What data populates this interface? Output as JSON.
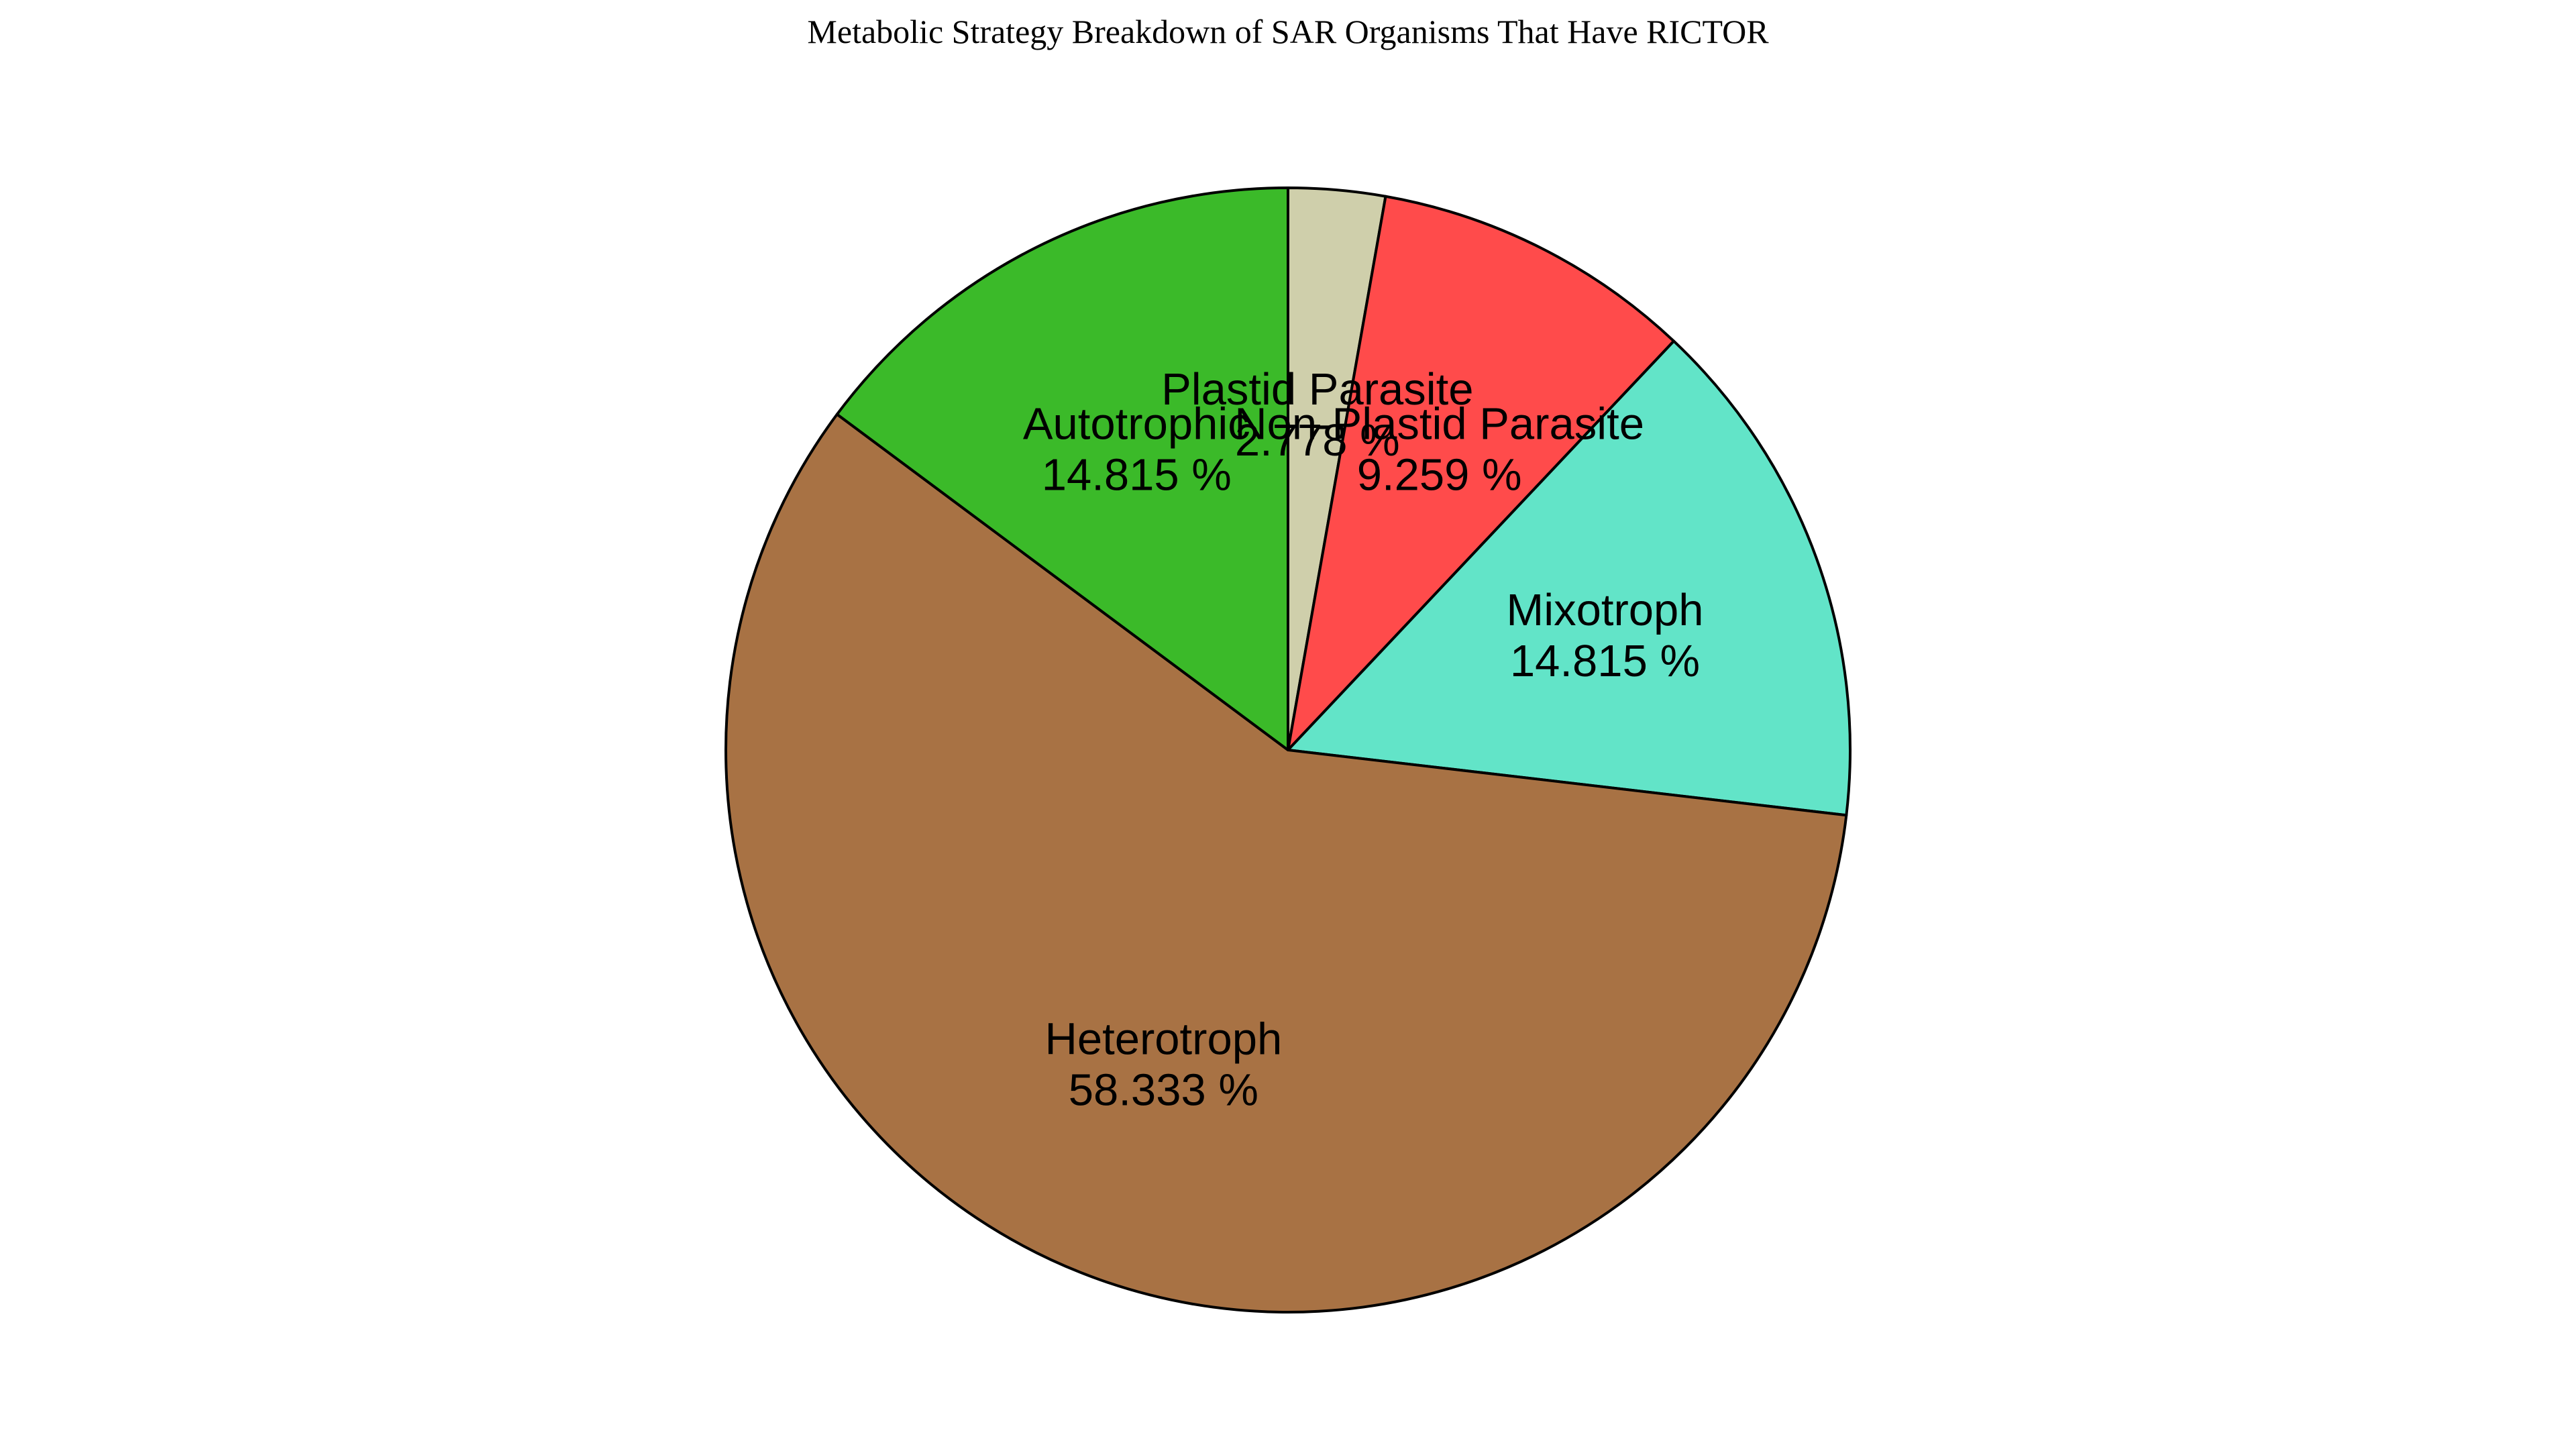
{
  "chart_data": {
    "type": "pie",
    "title": "Metabolic Strategy Breakdown of SAR Organisms That Have RICTOR",
    "start_angle_deg": 90,
    "direction": "clockwise",
    "slices": [
      {
        "label": "Plastid Parasite",
        "value": 2.778,
        "display": "2.778 %",
        "color": "#cfcfab"
      },
      {
        "label": "Non-Plastid Parasite",
        "value": 9.259,
        "display": "9.259 %",
        "color": "#ff4b4b"
      },
      {
        "label": "Mixotroph",
        "value": 14.815,
        "display": "14.815 %",
        "color": "#62e4c8"
      },
      {
        "label": "Heterotroph",
        "value": 58.333,
        "display": "58.333 %",
        "color": "#a87244"
      },
      {
        "label": "Autotrophic",
        "value": 14.815,
        "display": "14.815 %",
        "color": "#3bba29"
      }
    ]
  }
}
